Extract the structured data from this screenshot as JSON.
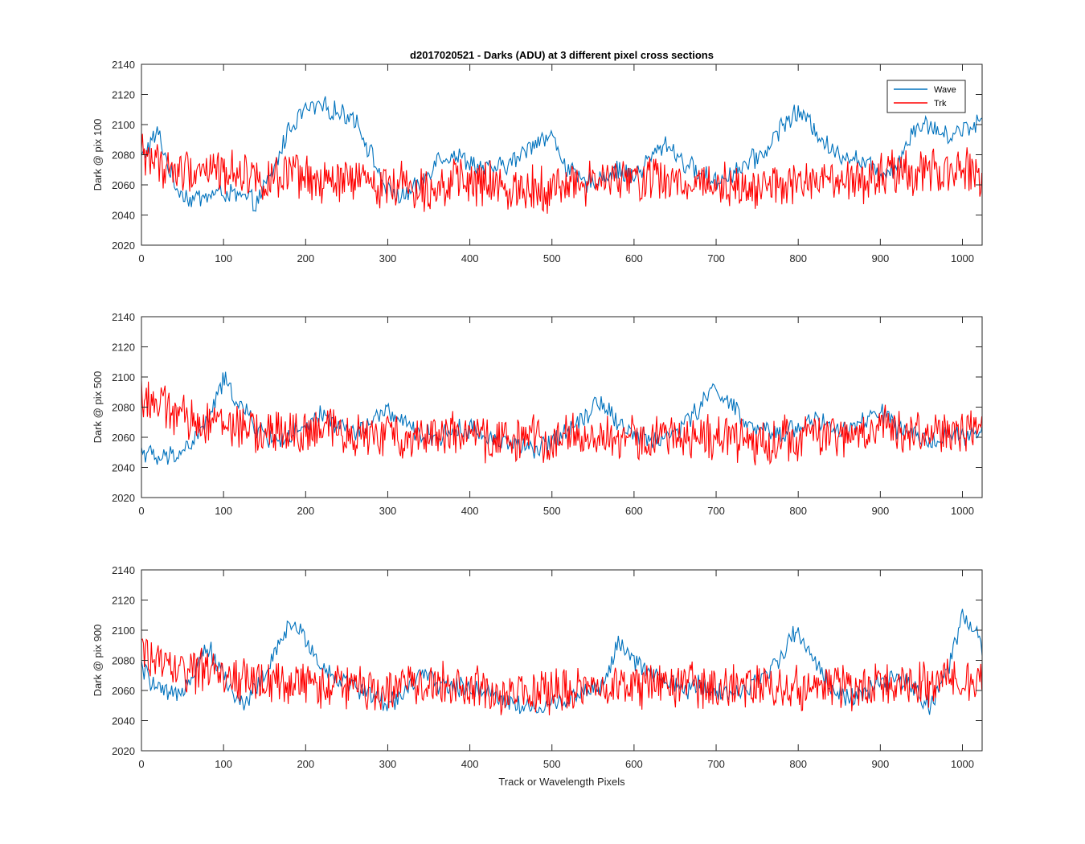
{
  "figure": {
    "title": "d2017020521 - Darks (ADU) at 3 different pixel cross sections",
    "xlabel": "Track or Wavelength Pixels"
  },
  "chart_data": [
    {
      "type": "line",
      "ylabel": "Dark @ pix 100",
      "xlim": [
        0,
        1024
      ],
      "ylim": [
        2020,
        2140
      ],
      "xticks": [
        0,
        100,
        200,
        300,
        400,
        500,
        600,
        700,
        800,
        900,
        1000
      ],
      "yticks": [
        2020,
        2040,
        2060,
        2080,
        2100,
        2120,
        2140
      ],
      "legend": {
        "placement": "top-right",
        "entries": [
          "Wave",
          "Trk"
        ]
      },
      "series": [
        {
          "name": "Wave",
          "color": "#0072BD",
          "x": [
            0,
            20,
            40,
            60,
            80,
            100,
            120,
            140,
            160,
            180,
            200,
            220,
            240,
            260,
            280,
            300,
            320,
            340,
            360,
            380,
            400,
            420,
            440,
            460,
            480,
            500,
            520,
            540,
            560,
            580,
            600,
            620,
            640,
            660,
            680,
            700,
            720,
            740,
            760,
            780,
            800,
            820,
            840,
            860,
            880,
            900,
            920,
            940,
            960,
            980,
            1000,
            1024
          ],
          "values": [
            2078,
            2095,
            2060,
            2050,
            2053,
            2055,
            2052,
            2048,
            2068,
            2098,
            2110,
            2112,
            2108,
            2105,
            2080,
            2055,
            2052,
            2060,
            2078,
            2080,
            2075,
            2070,
            2072,
            2078,
            2090,
            2092,
            2070,
            2060,
            2065,
            2070,
            2065,
            2078,
            2088,
            2075,
            2068,
            2062,
            2068,
            2075,
            2082,
            2100,
            2108,
            2098,
            2082,
            2080,
            2075,
            2068,
            2072,
            2098,
            2100,
            2092,
            2097,
            2103
          ]
        },
        {
          "name": "Trk",
          "color": "#FF0000",
          "x": [
            0,
            20,
            40,
            60,
            80,
            100,
            120,
            140,
            160,
            180,
            200,
            220,
            240,
            260,
            280,
            300,
            320,
            340,
            360,
            380,
            400,
            420,
            440,
            460,
            480,
            500,
            520,
            540,
            560,
            580,
            600,
            620,
            640,
            660,
            680,
            700,
            720,
            740,
            760,
            780,
            800,
            820,
            840,
            860,
            880,
            900,
            920,
            940,
            960,
            980,
            1000,
            1024
          ],
          "values": [
            2082,
            2075,
            2068,
            2070,
            2072,
            2068,
            2070,
            2065,
            2062,
            2066,
            2064,
            2060,
            2062,
            2063,
            2061,
            2060,
            2062,
            2058,
            2060,
            2062,
            2061,
            2060,
            2058,
            2057,
            2060,
            2056,
            2062,
            2060,
            2063,
            2064,
            2062,
            2066,
            2062,
            2060,
            2063,
            2062,
            2060,
            2058,
            2060,
            2058,
            2062,
            2060,
            2062,
            2060,
            2062,
            2066,
            2068,
            2065,
            2070,
            2068,
            2070,
            2065
          ]
        }
      ]
    },
    {
      "type": "line",
      "ylabel": "Dark @ pix 500",
      "xlim": [
        0,
        1024
      ],
      "ylim": [
        2020,
        2140
      ],
      "xticks": [
        0,
        100,
        200,
        300,
        400,
        500,
        600,
        700,
        800,
        900,
        1000
      ],
      "yticks": [
        2020,
        2040,
        2060,
        2080,
        2100,
        2120,
        2140
      ],
      "series": [
        {
          "name": "Wave",
          "color": "#0072BD",
          "x": [
            0,
            20,
            40,
            60,
            80,
            100,
            120,
            140,
            160,
            180,
            200,
            220,
            240,
            260,
            280,
            300,
            320,
            340,
            360,
            380,
            400,
            420,
            440,
            460,
            480,
            500,
            520,
            540,
            560,
            580,
            600,
            620,
            640,
            660,
            680,
            700,
            720,
            740,
            760,
            780,
            800,
            820,
            840,
            860,
            880,
            900,
            920,
            940,
            960,
            980,
            1000,
            1024
          ],
          "values": [
            2052,
            2045,
            2048,
            2055,
            2070,
            2098,
            2082,
            2066,
            2058,
            2060,
            2065,
            2075,
            2068,
            2062,
            2070,
            2078,
            2068,
            2062,
            2060,
            2064,
            2066,
            2060,
            2058,
            2055,
            2050,
            2058,
            2066,
            2075,
            2085,
            2070,
            2062,
            2058,
            2060,
            2068,
            2080,
            2094,
            2080,
            2066,
            2064,
            2062,
            2068,
            2072,
            2066,
            2064,
            2070,
            2078,
            2066,
            2060,
            2058,
            2062,
            2060,
            2062
          ]
        },
        {
          "name": "Trk",
          "color": "#FF0000",
          "x": [
            0,
            20,
            40,
            60,
            80,
            100,
            120,
            140,
            160,
            180,
            200,
            220,
            240,
            260,
            280,
            300,
            320,
            340,
            360,
            380,
            400,
            420,
            440,
            460,
            480,
            500,
            520,
            540,
            560,
            580,
            600,
            620,
            640,
            660,
            680,
            700,
            720,
            740,
            760,
            780,
            800,
            820,
            840,
            860,
            880,
            900,
            920,
            940,
            960,
            980,
            1000,
            1024
          ],
          "values": [
            2088,
            2082,
            2076,
            2070,
            2072,
            2070,
            2066,
            2064,
            2062,
            2064,
            2062,
            2064,
            2066,
            2062,
            2060,
            2062,
            2060,
            2062,
            2064,
            2062,
            2060,
            2058,
            2060,
            2058,
            2060,
            2058,
            2062,
            2060,
            2060,
            2058,
            2060,
            2058,
            2060,
            2062,
            2060,
            2058,
            2060,
            2056,
            2058,
            2060,
            2060,
            2062,
            2060,
            2060,
            2062,
            2068,
            2066,
            2062,
            2064,
            2062,
            2064,
            2062
          ]
        }
      ]
    },
    {
      "type": "line",
      "ylabel": "Dark @ pix 900",
      "xlim": [
        0,
        1024
      ],
      "ylim": [
        2020,
        2140
      ],
      "xticks": [
        0,
        100,
        200,
        300,
        400,
        500,
        600,
        700,
        800,
        900,
        1000
      ],
      "yticks": [
        2020,
        2040,
        2060,
        2080,
        2100,
        2120,
        2140
      ],
      "series": [
        {
          "name": "Wave",
          "color": "#0072BD",
          "x": [
            0,
            20,
            40,
            60,
            80,
            100,
            120,
            140,
            160,
            180,
            200,
            220,
            240,
            260,
            280,
            300,
            320,
            340,
            360,
            380,
            400,
            420,
            440,
            460,
            480,
            500,
            520,
            540,
            560,
            580,
            600,
            620,
            640,
            660,
            680,
            700,
            720,
            740,
            760,
            780,
            800,
            820,
            840,
            860,
            880,
            900,
            920,
            940,
            960,
            980,
            1000,
            1024
          ],
          "values": [
            2075,
            2060,
            2055,
            2070,
            2090,
            2070,
            2050,
            2062,
            2080,
            2105,
            2095,
            2075,
            2068,
            2062,
            2058,
            2050,
            2060,
            2070,
            2065,
            2062,
            2062,
            2060,
            2055,
            2050,
            2048,
            2050,
            2055,
            2060,
            2062,
            2090,
            2080,
            2070,
            2066,
            2060,
            2064,
            2060,
            2058,
            2062,
            2070,
            2085,
            2100,
            2080,
            2062,
            2055,
            2058,
            2064,
            2068,
            2062,
            2050,
            2068,
            2110,
            2090
          ]
        },
        {
          "name": "Trk",
          "color": "#FF0000",
          "x": [
            0,
            20,
            40,
            60,
            80,
            100,
            120,
            140,
            160,
            180,
            200,
            220,
            240,
            260,
            280,
            300,
            320,
            340,
            360,
            380,
            400,
            420,
            440,
            460,
            480,
            500,
            520,
            540,
            560,
            580,
            600,
            620,
            640,
            660,
            680,
            700,
            720,
            740,
            760,
            780,
            800,
            820,
            840,
            860,
            880,
            900,
            920,
            940,
            960,
            980,
            1000,
            1024
          ],
          "values": [
            2085,
            2080,
            2075,
            2072,
            2074,
            2070,
            2068,
            2066,
            2064,
            2066,
            2064,
            2062,
            2064,
            2062,
            2060,
            2062,
            2064,
            2062,
            2066,
            2064,
            2062,
            2060,
            2058,
            2060,
            2058,
            2060,
            2062,
            2060,
            2064,
            2066,
            2062,
            2064,
            2062,
            2066,
            2062,
            2060,
            2062,
            2064,
            2062,
            2060,
            2062,
            2060,
            2064,
            2062,
            2060,
            2062,
            2066,
            2064,
            2062,
            2066,
            2064,
            2066
          ]
        }
      ]
    }
  ]
}
